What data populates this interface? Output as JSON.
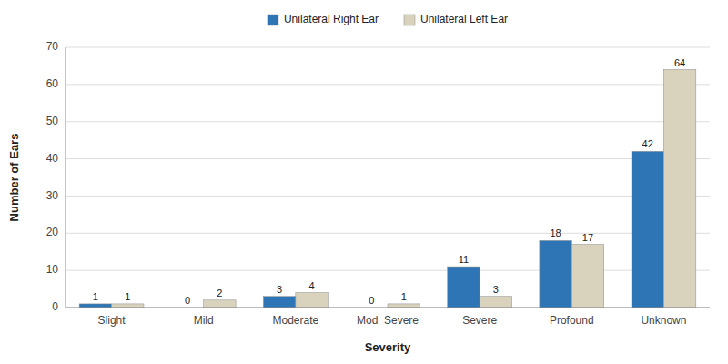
{
  "chart_data": {
    "type": "bar",
    "categories": [
      "Slight",
      "Mild",
      "Moderate",
      "Mod  Severe",
      "Severe",
      "Profound",
      "Unknown"
    ],
    "series": [
      {
        "name": "Unilateral Right Ear",
        "color": "#2E75B6",
        "values": [
          1,
          0,
          3,
          0,
          11,
          18,
          42
        ]
      },
      {
        "name": "Unilateral Left Ear",
        "color": "#D9D3BE",
        "values": [
          1,
          2,
          4,
          1,
          3,
          17,
          64
        ]
      }
    ],
    "xlabel": "Severity",
    "ylabel": "Number of Ears",
    "ylim": [
      0,
      70
    ],
    "yticks": [
      0,
      10,
      20,
      30,
      40,
      50,
      60,
      70
    ],
    "grid": true,
    "legend": "top",
    "data_labels": true
  }
}
